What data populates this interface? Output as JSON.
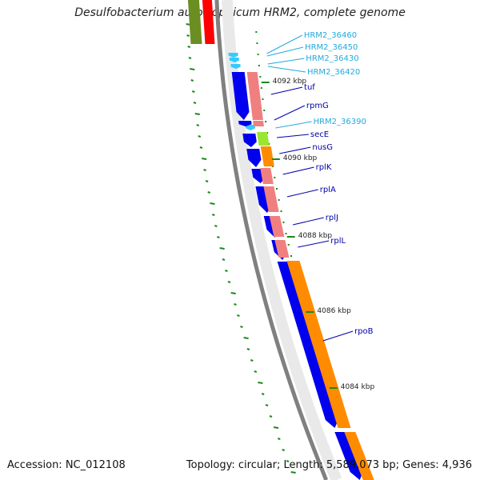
{
  "title": "Desulfobacterium autotrophicum HRM2, complete genome",
  "accession": "Accession: NC_012108",
  "summary": "Topology: circular; Length: 5,589,073 bp; Genes: 4,936",
  "colors": {
    "cds_dark_blue": "#0000ee",
    "cds_light_blue": "#33ccff",
    "rna_salmon": "#f08080",
    "orange": "#ff8c00",
    "lime": "#99e633",
    "olive": "#6b8e23",
    "red": "#ff0000",
    "backbone": "#808080",
    "tick_green": "#1a8a1a",
    "label_dark_blue": "#0000aa",
    "label_light_blue": "#22aadd"
  },
  "scale_labels": [
    "4092 kbp",
    "4090 kbp",
    "4088 kbp",
    "4086 kbp",
    "4084 kbp"
  ],
  "gene_labels": [
    {
      "text": "HRM2_36460",
      "color": "light"
    },
    {
      "text": "HRM2_36450",
      "color": "light"
    },
    {
      "text": "HRM2_36430",
      "color": "light"
    },
    {
      "text": "HRM2_36420",
      "color": "light"
    },
    {
      "text": "tuf",
      "color": "dark"
    },
    {
      "text": "rpmG",
      "color": "dark"
    },
    {
      "text": "HRM2_36390",
      "color": "light"
    },
    {
      "text": "secE",
      "color": "dark"
    },
    {
      "text": "nusG",
      "color": "dark"
    },
    {
      "text": "rplK",
      "color": "dark"
    },
    {
      "text": "rplA",
      "color": "dark"
    },
    {
      "text": "rplJ",
      "color": "dark"
    },
    {
      "text": "rplL",
      "color": "dark"
    },
    {
      "text": "rpoB",
      "color": "dark"
    }
  ]
}
